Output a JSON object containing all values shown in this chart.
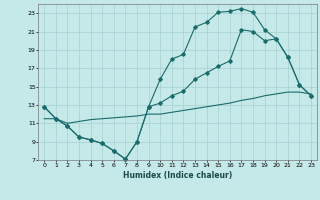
{
  "xlabel": "Humidex (Indice chaleur)",
  "background_color": "#c5e8e8",
  "grid_color": "#a8d0d0",
  "line_color": "#1a6b6b",
  "xlim": [
    -0.5,
    23.5
  ],
  "ylim": [
    7,
    24
  ],
  "xticks": [
    0,
    1,
    2,
    3,
    4,
    5,
    6,
    7,
    8,
    9,
    10,
    11,
    12,
    13,
    14,
    15,
    16,
    17,
    18,
    19,
    20,
    21,
    22,
    23
  ],
  "yticks": [
    7,
    9,
    11,
    13,
    15,
    17,
    19,
    21,
    23
  ],
  "line1_x": [
    0,
    1,
    2,
    3,
    4,
    5,
    6,
    7,
    8,
    9,
    10,
    11,
    12,
    13,
    14,
    15,
    16,
    17,
    18,
    19,
    20,
    21,
    22,
    23
  ],
  "line1_y": [
    12.8,
    11.5,
    10.7,
    9.5,
    9.2,
    8.8,
    8.0,
    7.1,
    9.0,
    12.8,
    15.8,
    18.0,
    18.5,
    21.5,
    22.0,
    23.1,
    23.2,
    23.5,
    23.1,
    21.2,
    20.2,
    18.2,
    15.2,
    14.0
  ],
  "line2_x": [
    0,
    1,
    2,
    3,
    4,
    5,
    6,
    7,
    8,
    9,
    10,
    11,
    12,
    13,
    14,
    15,
    16,
    17,
    18,
    19,
    20,
    21,
    22,
    23
  ],
  "line2_y": [
    12.8,
    11.5,
    10.7,
    9.5,
    9.2,
    8.8,
    8.0,
    7.1,
    9.0,
    12.8,
    13.2,
    14.0,
    14.5,
    15.8,
    16.5,
    17.2,
    17.8,
    21.2,
    21.0,
    20.0,
    20.2,
    18.2,
    15.2,
    14.0
  ],
  "line3_x": [
    0,
    1,
    2,
    3,
    4,
    5,
    6,
    7,
    8,
    9,
    10,
    11,
    12,
    13,
    14,
    15,
    16,
    17,
    18,
    19,
    20,
    21,
    22,
    23
  ],
  "line3_y": [
    11.5,
    11.5,
    11.0,
    11.2,
    11.4,
    11.5,
    11.6,
    11.7,
    11.8,
    12.0,
    12.0,
    12.2,
    12.4,
    12.6,
    12.8,
    13.0,
    13.2,
    13.5,
    13.7,
    14.0,
    14.2,
    14.4,
    14.4,
    14.2
  ]
}
